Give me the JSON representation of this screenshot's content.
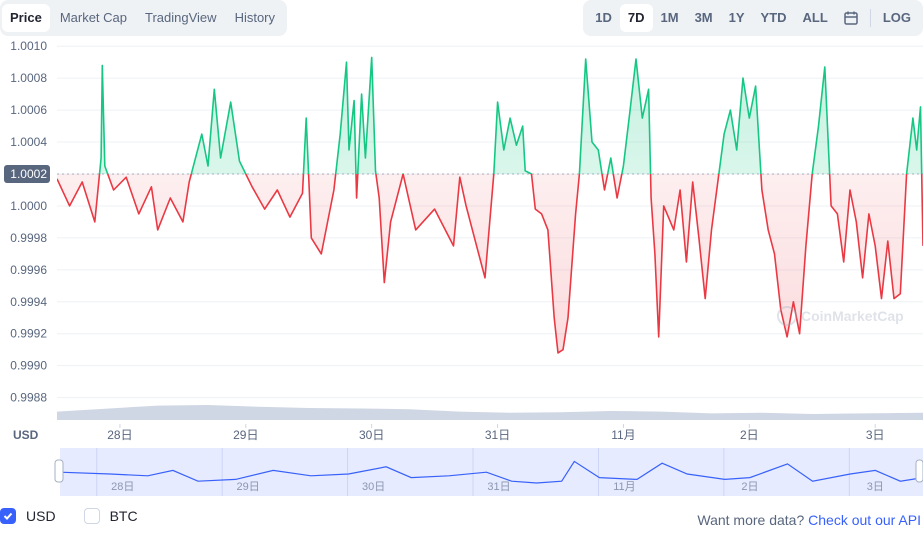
{
  "tabs": [
    "Price",
    "Market Cap",
    "TradingView",
    "History"
  ],
  "ranges": [
    "1D",
    "7D",
    "1M",
    "3M",
    "1Y",
    "YTD",
    "ALL"
  ],
  "log_label": "LOG",
  "icons": {
    "calendar": "calendar-icon",
    "check": "check-icon"
  },
  "currency_label": "USD",
  "watermark": "CoinMarketCap",
  "legend": {
    "usd": "USD",
    "btc": "BTC"
  },
  "footer": {
    "prefix": "Want more data?",
    "link": "Check out our API"
  },
  "colors": {
    "up": "#16c784",
    "down": "#ea3943",
    "accent": "#3861fb",
    "volume": "#cfd6e4"
  },
  "chart_data": {
    "type": "line",
    "baseline": 1.0002,
    "baseline_label": "1.0002",
    "ylim": [
      0.99866,
      1.00102
    ],
    "y_ticks": [
      "1.0010",
      "1.0008",
      "1.0006",
      "1.0004",
      "1.0002",
      "1.0000",
      "0.9998",
      "0.9996",
      "0.9994",
      "0.9992",
      "0.9990",
      "0.9988"
    ],
    "x_ticks": [
      {
        "label": "28日",
        "x": 0.5
      },
      {
        "label": "29日",
        "x": 1.5
      },
      {
        "label": "30日",
        "x": 2.5
      },
      {
        "label": "31日",
        "x": 3.5
      },
      {
        "label": "11月",
        "x": 4.5
      },
      {
        "label": "2日",
        "x": 5.5
      },
      {
        "label": "3日",
        "x": 6.5
      }
    ],
    "x_range": [
      0,
      6.88
    ],
    "series": [
      {
        "values": [
          [
            0.0,
            1.00017
          ],
          [
            0.1,
            1.0
          ],
          [
            0.2,
            1.00015
          ],
          [
            0.3,
            0.9999
          ],
          [
            0.35,
            1.0003
          ],
          [
            0.36,
            1.00088
          ],
          [
            0.38,
            1.00025
          ],
          [
            0.45,
            1.0001
          ],
          [
            0.55,
            1.00018
          ],
          [
            0.65,
            0.99995
          ],
          [
            0.75,
            1.00012
          ],
          [
            0.8,
            0.99985
          ],
          [
            0.9,
            1.00005
          ],
          [
            1.0,
            0.9999
          ],
          [
            1.05,
            1.00015
          ],
          [
            1.15,
            1.00045
          ],
          [
            1.2,
            1.00025
          ],
          [
            1.25,
            1.00073
          ],
          [
            1.3,
            1.0003
          ],
          [
            1.38,
            1.00065
          ],
          [
            1.45,
            1.00028
          ],
          [
            1.55,
            1.00012
          ],
          [
            1.65,
            0.99998
          ],
          [
            1.75,
            1.0001
          ],
          [
            1.85,
            0.99993
          ],
          [
            1.95,
            1.00008
          ],
          [
            1.98,
            1.00055
          ],
          [
            2.02,
            0.9998
          ],
          [
            2.1,
            0.9997
          ],
          [
            2.2,
            1.0001
          ],
          [
            2.25,
            1.00045
          ],
          [
            2.3,
            1.0009
          ],
          [
            2.32,
            1.00035
          ],
          [
            2.36,
            1.00066
          ],
          [
            2.38,
            1.00005
          ],
          [
            2.42,
            1.0007
          ],
          [
            2.45,
            1.0003
          ],
          [
            2.5,
            1.00093
          ],
          [
            2.53,
            1.00022
          ],
          [
            2.56,
            1.00005
          ],
          [
            2.6,
            0.99952
          ],
          [
            2.65,
            0.9999
          ],
          [
            2.75,
            1.0002
          ],
          [
            2.85,
            0.99985
          ],
          [
            3.0,
            0.99998
          ],
          [
            3.15,
            0.99975
          ],
          [
            3.2,
            1.00018
          ],
          [
            3.25,
            1.0
          ],
          [
            3.35,
            0.9997
          ],
          [
            3.4,
            0.99955
          ],
          [
            3.47,
            1.0002
          ],
          [
            3.5,
            1.00065
          ],
          [
            3.55,
            1.00035
          ],
          [
            3.6,
            1.00055
          ],
          [
            3.65,
            1.00038
          ],
          [
            3.7,
            1.0005
          ],
          [
            3.72,
            1.00022
          ],
          [
            3.77,
            1.0002
          ],
          [
            3.8,
            0.99998
          ],
          [
            3.85,
            0.99995
          ],
          [
            3.9,
            0.99985
          ],
          [
            3.95,
            0.9993
          ],
          [
            3.98,
            0.99908
          ],
          [
            4.02,
            0.9991
          ],
          [
            4.06,
            0.9993
          ],
          [
            4.12,
            0.99995
          ],
          [
            4.15,
            1.0002
          ],
          [
            4.2,
            1.00092
          ],
          [
            4.25,
            1.0004
          ],
          [
            4.3,
            1.00035
          ],
          [
            4.35,
            1.0001
          ],
          [
            4.4,
            1.0003
          ],
          [
            4.45,
            1.00005
          ],
          [
            4.5,
            1.00025
          ],
          [
            4.55,
            1.00058
          ],
          [
            4.6,
            1.00092
          ],
          [
            4.65,
            1.00055
          ],
          [
            4.7,
            1.00073
          ],
          [
            4.72,
            1.00005
          ],
          [
            4.75,
            0.9997
          ],
          [
            4.78,
            0.99918
          ],
          [
            4.82,
            1.0
          ],
          [
            4.9,
            0.99985
          ],
          [
            4.95,
            1.0001
          ],
          [
            5.0,
            0.99965
          ],
          [
            5.05,
            1.00015
          ],
          [
            5.1,
            0.9998
          ],
          [
            5.15,
            0.99942
          ],
          [
            5.2,
            0.99985
          ],
          [
            5.25,
            1.00015
          ],
          [
            5.3,
            1.00045
          ],
          [
            5.35,
            1.0006
          ],
          [
            5.4,
            1.00035
          ],
          [
            5.45,
            1.0008
          ],
          [
            5.5,
            1.00055
          ],
          [
            5.55,
            1.00075
          ],
          [
            5.6,
            1.0001
          ],
          [
            5.65,
            0.99985
          ],
          [
            5.7,
            0.9997
          ],
          [
            5.75,
            0.99935
          ],
          [
            5.8,
            0.99918
          ],
          [
            5.85,
            0.9994
          ],
          [
            5.9,
            0.9992
          ],
          [
            5.95,
            0.99975
          ],
          [
            6.0,
            1.0002
          ],
          [
            6.05,
            1.0005
          ],
          [
            6.1,
            1.00087
          ],
          [
            6.15,
            1.0
          ],
          [
            6.2,
            0.99995
          ],
          [
            6.25,
            0.99965
          ],
          [
            6.3,
            1.0001
          ],
          [
            6.35,
            0.9999
          ],
          [
            6.4,
            0.99955
          ],
          [
            6.45,
            0.99995
          ],
          [
            6.5,
            0.99975
          ],
          [
            6.55,
            0.99942
          ],
          [
            6.6,
            0.99978
          ],
          [
            6.65,
            0.99942
          ],
          [
            6.7,
            0.99945
          ],
          [
            6.75,
            1.0002
          ],
          [
            6.8,
            1.00055
          ],
          [
            6.83,
            1.00035
          ],
          [
            6.86,
            1.00062
          ],
          [
            6.88,
            0.99975
          ]
        ]
      }
    ],
    "volume_relative": [
      [
        0.0,
        0.28
      ],
      [
        0.4,
        0.38
      ],
      [
        0.8,
        0.48
      ],
      [
        1.2,
        0.5
      ],
      [
        1.6,
        0.44
      ],
      [
        2.0,
        0.4
      ],
      [
        2.5,
        0.38
      ],
      [
        2.8,
        0.36
      ],
      [
        3.2,
        0.28
      ],
      [
        3.6,
        0.24
      ],
      [
        4.0,
        0.26
      ],
      [
        4.4,
        0.3
      ],
      [
        4.8,
        0.28
      ],
      [
        5.2,
        0.22
      ],
      [
        5.6,
        0.24
      ],
      [
        6.0,
        0.2
      ],
      [
        6.4,
        0.22
      ],
      [
        6.88,
        0.24
      ]
    ],
    "navigator_relative": [
      [
        0.0,
        0.55
      ],
      [
        0.4,
        0.5
      ],
      [
        0.7,
        0.45
      ],
      [
        0.9,
        0.6
      ],
      [
        1.1,
        0.3
      ],
      [
        1.4,
        0.35
      ],
      [
        1.7,
        0.6
      ],
      [
        2.0,
        0.45
      ],
      [
        2.3,
        0.5
      ],
      [
        2.6,
        0.7
      ],
      [
        2.8,
        0.4
      ],
      [
        3.1,
        0.45
      ],
      [
        3.4,
        0.55
      ],
      [
        3.6,
        0.3
      ],
      [
        3.8,
        0.25
      ],
      [
        4.0,
        0.3
      ],
      [
        4.1,
        0.85
      ],
      [
        4.3,
        0.4
      ],
      [
        4.6,
        0.35
      ],
      [
        4.8,
        0.8
      ],
      [
        5.0,
        0.5
      ],
      [
        5.3,
        0.35
      ],
      [
        5.5,
        0.4
      ],
      [
        5.8,
        0.78
      ],
      [
        6.0,
        0.3
      ],
      [
        6.3,
        0.5
      ],
      [
        6.5,
        0.6
      ],
      [
        6.7,
        0.3
      ],
      [
        6.88,
        0.4
      ]
    ]
  }
}
